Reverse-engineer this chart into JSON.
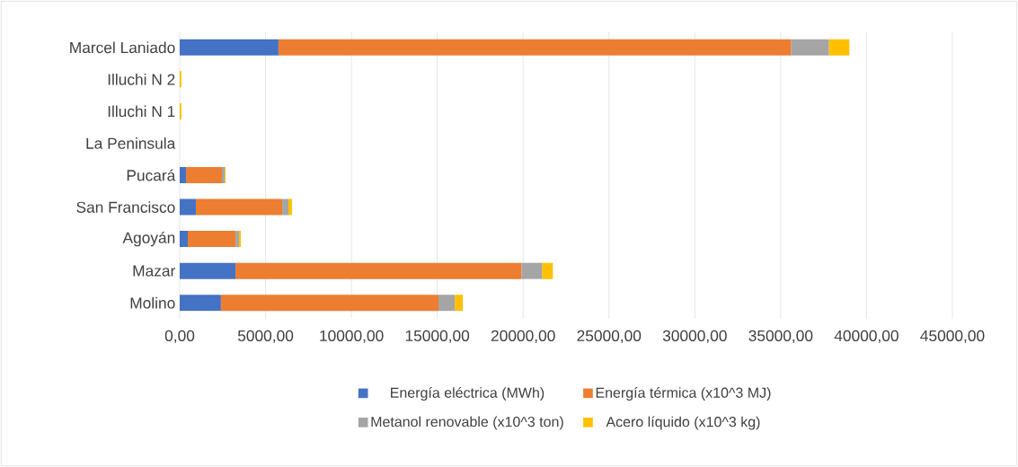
{
  "chart_data": {
    "type": "bar",
    "orientation": "horizontal",
    "stacked": true,
    "categories": [
      "Marcel Laniado",
      "Illuchi N 2",
      "Illuchi N 1",
      "La Peninsula",
      "Pucará",
      "San Francisco",
      "Agoyán",
      "Mazar",
      "Molino"
    ],
    "series": [
      {
        "name": "Energía eléctrica (MWh)",
        "color": "#4472c4",
        "values": [
          5750,
          null,
          null,
          0,
          370,
          940,
          470,
          3250,
          2400
        ]
      },
      {
        "name": "Energía térmica (x10^3 MJ)",
        "color": "#ed7d31",
        "values": [
          29850,
          null,
          null,
          0,
          2090,
          5030,
          2780,
          16650,
          12670
        ]
      },
      {
        "name": "Metanol renovable (x10^3 ton)",
        "color": "#a5a5a5",
        "values": [
          2200,
          null,
          null,
          0,
          160,
          360,
          200,
          1200,
          950
        ]
      },
      {
        "name": "Acero líquido (x10^3 kg)",
        "color": "#ffc000",
        "values": [
          1200,
          100,
          100,
          0,
          50,
          210,
          110,
          630,
          470
        ]
      }
    ],
    "xlim": [
      0,
      45000
    ],
    "xticks": [
      {
        "value": 0,
        "label": "0,00"
      },
      {
        "value": 5000,
        "label": "5000,00"
      },
      {
        "value": 10000,
        "label": "10000,00"
      },
      {
        "value": 15000,
        "label": "15000,00"
      },
      {
        "value": 20000,
        "label": "20000,00"
      },
      {
        "value": 25000,
        "label": "25000,00"
      },
      {
        "value": 30000,
        "label": "30000,00"
      },
      {
        "value": 35000,
        "label": "35000,00"
      },
      {
        "value": 40000,
        "label": "40000,00"
      },
      {
        "value": 45000,
        "label": "45000,00"
      }
    ],
    "grid": "x",
    "legend": "bottom"
  }
}
